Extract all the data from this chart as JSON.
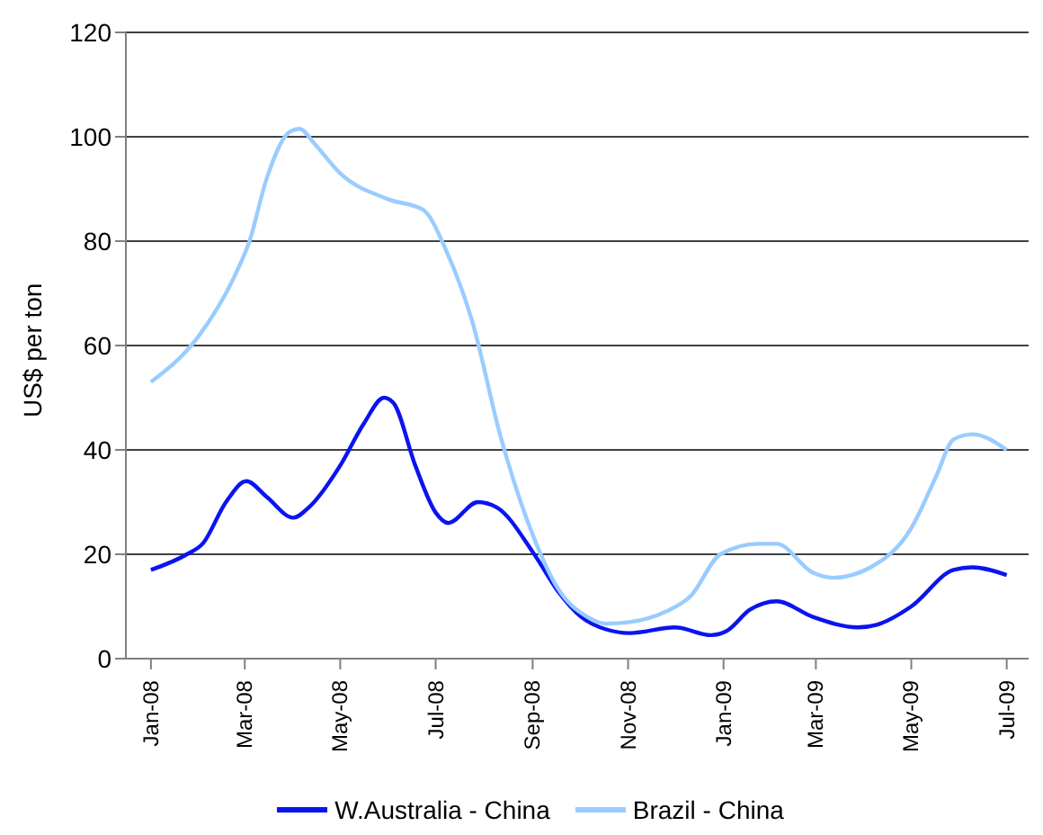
{
  "chart_data": {
    "type": "line",
    "ylabel": "US$ per ton",
    "xlim": [
      "2007-12-16",
      "2009-07-15"
    ],
    "xticks": [
      {
        "value": "2008-01-01",
        "label": "Jan-08"
      },
      {
        "value": "2008-03-01",
        "label": "Mar-08"
      },
      {
        "value": "2008-05-01",
        "label": "May-08"
      },
      {
        "value": "2008-07-01",
        "label": "Jul-08"
      },
      {
        "value": "2008-09-01",
        "label": "Sep-08"
      },
      {
        "value": "2008-11-01",
        "label": "Nov-08"
      },
      {
        "value": "2009-01-01",
        "label": "Jan-09"
      },
      {
        "value": "2009-03-01",
        "label": "Mar-09"
      },
      {
        "value": "2009-05-01",
        "label": "May-09"
      },
      {
        "value": "2009-07-01",
        "label": "Jul-09"
      }
    ],
    "ylim": [
      0,
      120
    ],
    "yticks": [
      0,
      20,
      40,
      60,
      80,
      100,
      120
    ],
    "grid": "y",
    "legend": "bottom",
    "marker": "none",
    "line_style": "solid",
    "series": [
      {
        "name": "W.Australia - China",
        "color": "#0a14f0",
        "x": [
          "2008-01-01",
          "2008-01-24",
          "2008-02-03",
          "2008-02-18",
          "2008-03-02",
          "2008-03-15",
          "2008-04-01",
          "2008-04-11",
          "2008-05-01",
          "2008-05-16",
          "2008-05-29",
          "2008-06-04",
          "2008-06-18",
          "2008-07-01",
          "2008-07-09",
          "2008-07-28",
          "2008-08-09",
          "2008-09-02",
          "2008-09-17",
          "2008-10-02",
          "2008-10-18",
          "2008-11-02",
          "2008-12-01",
          "2008-12-24",
          "2009-01-03",
          "2009-01-18",
          "2009-02-04",
          "2009-02-27",
          "2009-03-28",
          "2009-04-09",
          "2009-05-01",
          "2009-05-28",
          "2009-06-09",
          "2009-07-01"
        ],
        "values": [
          17,
          20,
          22,
          30,
          34,
          31,
          27,
          29,
          37,
          45,
          50,
          49,
          37,
          28,
          26,
          30,
          29,
          20,
          13,
          8,
          5.6,
          4.9,
          6,
          4.5,
          5.3,
          9.4,
          11,
          8,
          6,
          6.5,
          10,
          17,
          17.5,
          16
        ]
      },
      {
        "name": "Brazil - China",
        "color": "#99ccff",
        "x": [
          "2008-01-01",
          "2008-02-01",
          "2008-02-23",
          "2008-03-04",
          "2008-03-15",
          "2008-03-30",
          "2008-04-05",
          "2008-04-15",
          "2008-05-01",
          "2008-06-01",
          "2008-06-23",
          "2008-07-08",
          "2008-07-24",
          "2008-08-12",
          "2008-09-02",
          "2008-09-17",
          "2008-10-06",
          "2008-10-18",
          "2008-11-02",
          "2008-11-25",
          "2008-12-11",
          "2008-12-30",
          "2009-01-23",
          "2009-02-04",
          "2009-02-27",
          "2009-03-12",
          "2009-04-05",
          "2009-05-01",
          "2009-05-17",
          "2009-05-28",
          "2009-06-09",
          "2009-07-01"
        ],
        "values": [
          53,
          62,
          73,
          80,
          92,
          101,
          101.5,
          98.5,
          93,
          88,
          86,
          78,
          65,
          42,
          23,
          13.5,
          8,
          6.7,
          7,
          9,
          12,
          20,
          22,
          22,
          16.5,
          15.5,
          17.5,
          25,
          35,
          42,
          43,
          40
        ]
      }
    ]
  }
}
